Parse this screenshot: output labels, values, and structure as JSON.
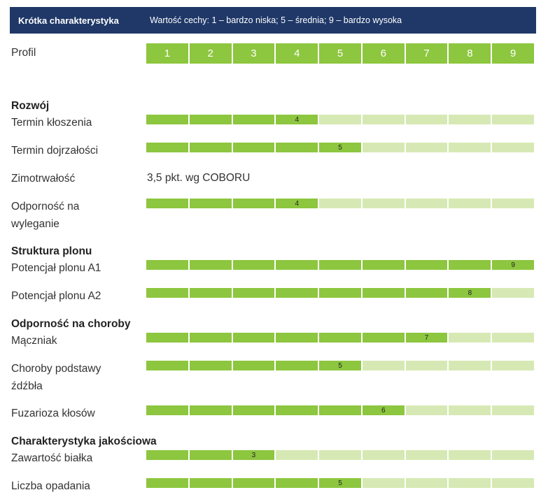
{
  "header": {
    "title": "Krótka charakterystyka",
    "description": "Wartość cechy: 1 – bardzo niska; 5 – średnia; 9 – bardzo wysoka"
  },
  "profile": {
    "label": "Profil",
    "scale": [
      "1",
      "2",
      "3",
      "4",
      "5",
      "6",
      "7",
      "8",
      "9"
    ]
  },
  "colors": {
    "header_bg": "#1f3868",
    "filled": "#8dc63f",
    "empty": "#d6e9b4"
  },
  "sections": [
    {
      "title": "Rozwój",
      "rows": [
        {
          "label": "Termin kłoszenia",
          "value": 4
        },
        {
          "label": "Termin dojrzałości",
          "value": 5
        },
        {
          "label": "Zimotrwałość",
          "text": "3,5 pkt. wg COBORU"
        },
        {
          "label_lines": [
            "Odporność na",
            "wyleganie"
          ],
          "value": 4
        }
      ]
    },
    {
      "title": "Struktura plonu",
      "rows": [
        {
          "label": "Potencjał plonu A1",
          "value": 9
        },
        {
          "label": "Potencjał plonu A2",
          "value": 8
        }
      ]
    },
    {
      "title": "Odporność na choroby",
      "rows": [
        {
          "label": "Mączniak",
          "value": 7
        },
        {
          "label_lines": [
            "Choroby podstawy",
            "źdźbła"
          ],
          "value": 5
        },
        {
          "label": "Fuzarioza kłosów",
          "value": 6
        }
      ]
    },
    {
      "title": "Charakterystyka jakościowa",
      "rows": [
        {
          "label": "Zawartość białka",
          "value": 3
        },
        {
          "label": "Liczba opadania",
          "value": 5
        }
      ]
    }
  ]
}
